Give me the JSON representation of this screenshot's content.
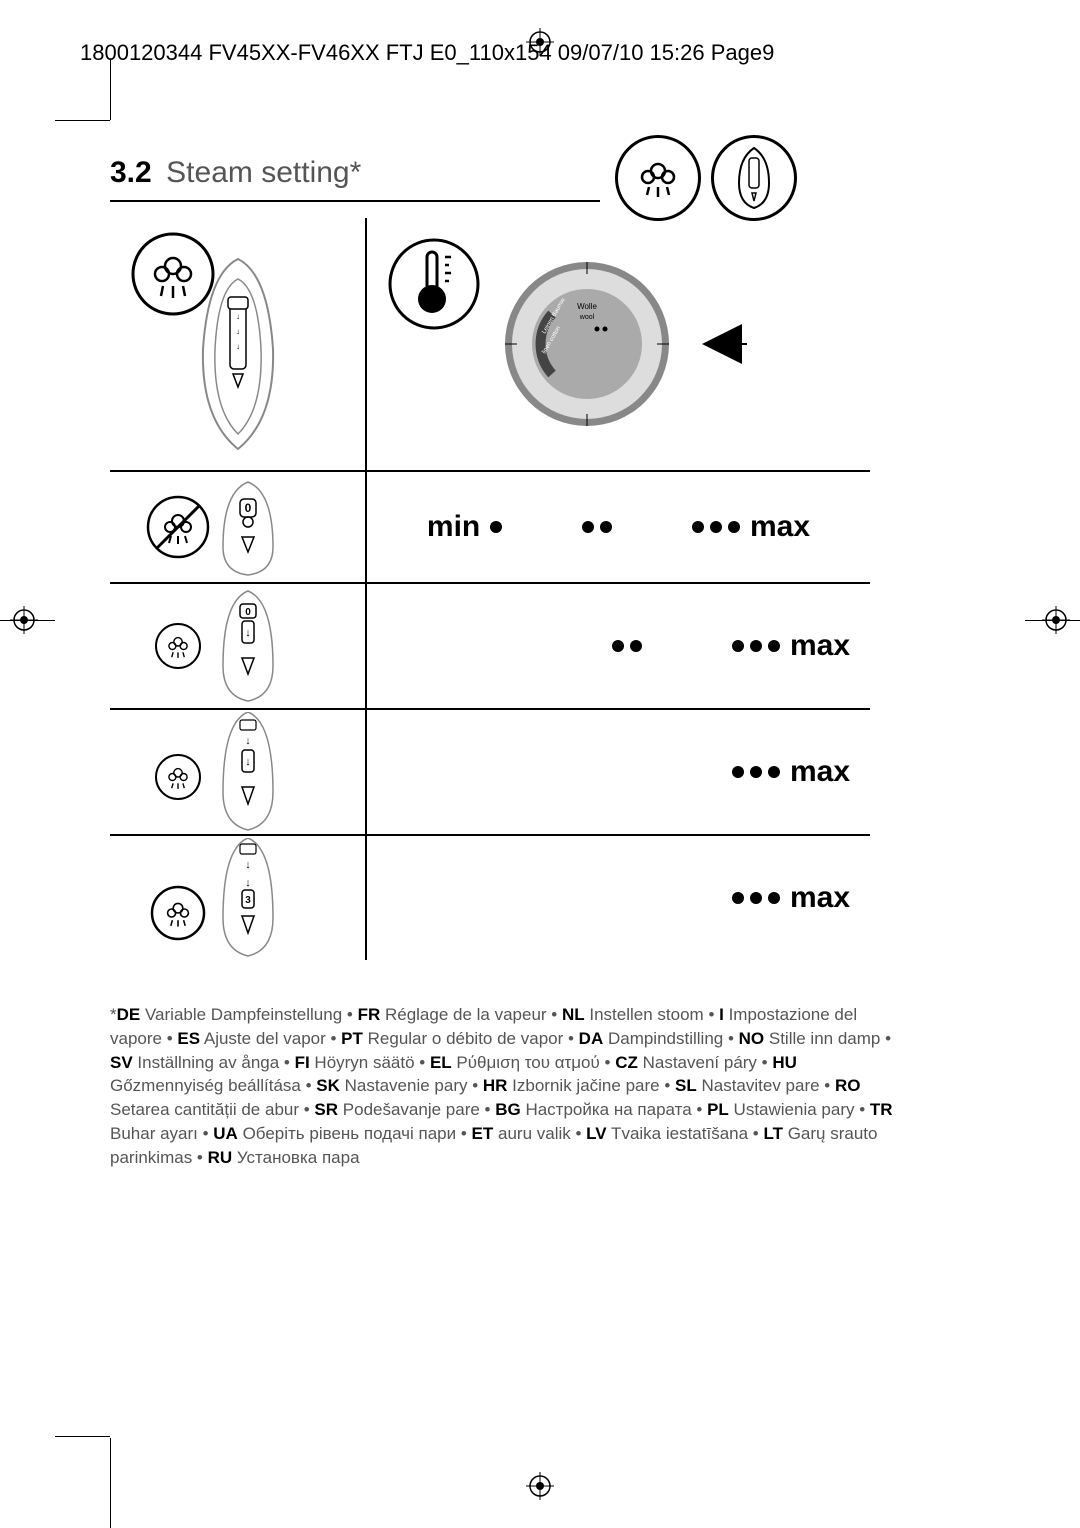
{
  "header": "1800120344 FV45XX-FV46XX FTJ E0_110x154  09/07/10  15:26  Page9",
  "section": {
    "number": "3.2",
    "title": "Steam setting*"
  },
  "scale": {
    "min": "min",
    "max": "max"
  },
  "rows": [
    {
      "leftDots": 0,
      "rightGroups": [
        1,
        2,
        3
      ],
      "showMin": true,
      "showMax": true
    },
    {
      "leftDots": 1,
      "rightGroups": [
        2,
        3
      ],
      "showMin": false,
      "showMax": true
    },
    {
      "leftDots": 2,
      "rightGroups": [
        3
      ],
      "showMin": false,
      "showMax": true
    },
    {
      "leftDots": 3,
      "rightGroups": [
        3
      ],
      "showMin": false,
      "showMax": true
    }
  ],
  "translations": [
    {
      "code": "DE",
      "text": "Variable Dampfeinstellung"
    },
    {
      "code": "FR",
      "text": "Réglage de la vapeur"
    },
    {
      "code": "NL",
      "text": "Instellen stoom"
    },
    {
      "code": "I",
      "text": "Impostazione del vapore"
    },
    {
      "code": "ES",
      "text": "Ajuste del vapor"
    },
    {
      "code": "PT",
      "text": "Regular o débito de vapor"
    },
    {
      "code": "DA",
      "text": "Dampindstilling"
    },
    {
      "code": "NO",
      "text": "Stille inn damp"
    },
    {
      "code": "SV",
      "text": "Inställning av ånga"
    },
    {
      "code": "FI",
      "text": "Höyryn säätö"
    },
    {
      "code": "EL",
      "text": "Ρύθμιση του ατμού"
    },
    {
      "code": "CZ",
      "text": "Nastavení páry"
    },
    {
      "code": "HU",
      "text": "Gőzmennyiség beállítása"
    },
    {
      "code": "SK",
      "text": "Nastavenie pary"
    },
    {
      "code": "HR",
      "text": "Izbornik jačine pare"
    },
    {
      "code": "SL",
      "text": "Nastavitev pare"
    },
    {
      "code": "RO",
      "text": "Setarea cantității de abur"
    },
    {
      "code": "SR",
      "text": "Podešavanje pare"
    },
    {
      "code": "BG",
      "text": "Настройка на парата"
    },
    {
      "code": "PL",
      "text": "Ustawienia pary"
    },
    {
      "code": "TR",
      "text": "Buhar ayarı"
    },
    {
      "code": "UA",
      "text": "Оберіть рівень подачі пари"
    },
    {
      "code": "ET",
      "text": "auru valik"
    },
    {
      "code": "LV",
      "text": "Tvaika iestatīšana"
    },
    {
      "code": "LT",
      "text": "Garų srauto parinkimas"
    },
    {
      "code": "RU",
      "text": "Установка пара"
    }
  ],
  "colors": {
    "text_light": "#555555",
    "text_dark": "#000000",
    "line": "#000000",
    "background": "#ffffff"
  },
  "typography": {
    "header_size": 22,
    "section_number_size": 30,
    "section_title_size": 30,
    "scale_label_size": 30,
    "translation_size": 17
  }
}
